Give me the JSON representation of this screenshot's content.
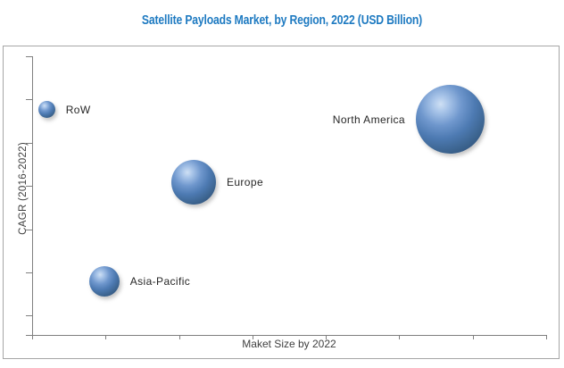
{
  "title": "Satellite Payloads Market, by Region, 2022 (USD Billion)",
  "colors": {
    "title": "#1E7AC1",
    "axis": "#808080",
    "chart_border": "#A6A6A6",
    "bubble_main": "#4F81BD",
    "bubble_highlight": "#CFE0F4",
    "bubble_dark": "#2A476D",
    "bubble_label_text": "#262626",
    "axis_label_text": "#3F3F3F"
  },
  "axes": {
    "x_label": "Maket Size by 2022",
    "y_label": "CAGR (2016-2022)",
    "x_tick_count": 8,
    "y_tick_count": 7,
    "numeric_tick_labels_shown": false
  },
  "chart_data": {
    "type": "bubble",
    "title": "Satellite Payloads Market, by Region, 2022 (USD Billion)",
    "xlabel": "Maket Size by 2022",
    "ylabel": "CAGR (2016-2022)",
    "x_axis_numeric_labels_shown": false,
    "y_axis_numeric_labels_shown": false,
    "series": [
      {
        "name": "RoW",
        "x_frac": 0.029,
        "y_frac": 0.808,
        "radius_px": 9.5,
        "label_side": "right"
      },
      {
        "name": "North America",
        "x_frac": 0.8125,
        "y_frac": 0.773,
        "radius_px": 38.5,
        "label_side": "left"
      },
      {
        "name": "Europe",
        "x_frac": 0.315,
        "y_frac": 0.546,
        "radius_px": 25,
        "label_side": "right"
      },
      {
        "name": "Asia-Pacific",
        "x_frac": 0.141,
        "y_frac": 0.192,
        "radius_px": 17,
        "label_side": "right"
      }
    ]
  }
}
